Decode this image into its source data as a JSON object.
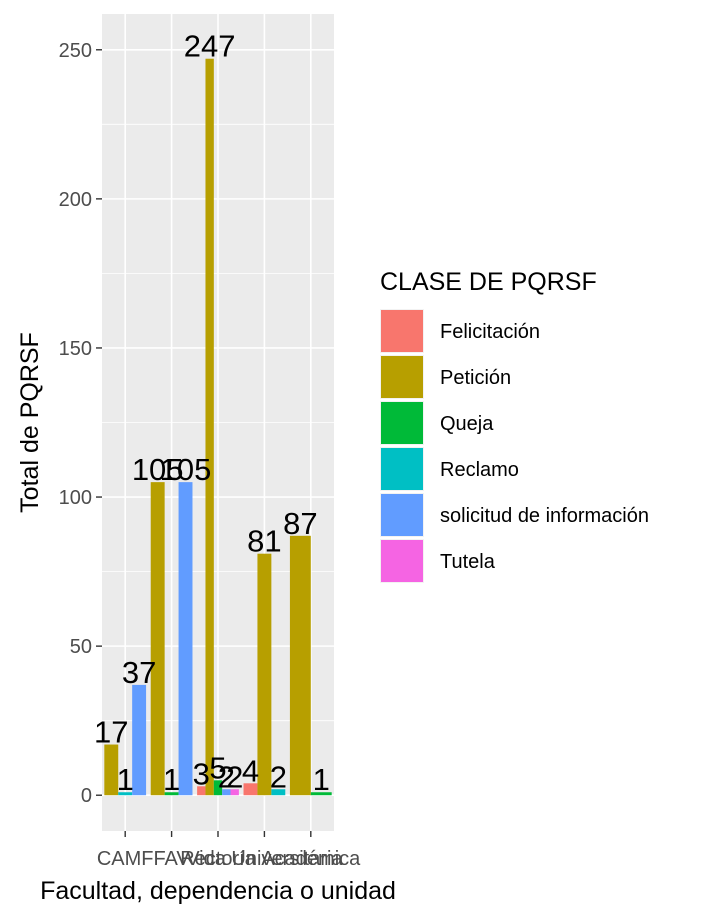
{
  "chart_data": {
    "type": "bar",
    "xlabel": "Facultad, dependencia o unidad",
    "ylabel": "Total de PQRSF",
    "ylim": [
      -12,
      262
    ],
    "yticks": [
      0,
      50,
      100,
      150,
      200,
      250
    ],
    "categories": [
      "CAMF",
      "FAV",
      "Rectoría",
      "Vida Universitaria",
      "Académica"
    ],
    "legend": {
      "title": "CLASE DE PQRSF",
      "position": "right"
    },
    "series": [
      {
        "name": "Felicitación",
        "color": "#F8766D",
        "values": [
          null,
          null,
          3,
          4,
          null
        ]
      },
      {
        "name": "Petición",
        "color": "#B79F00",
        "values": [
          17,
          105,
          247,
          81,
          87
        ]
      },
      {
        "name": "Queja",
        "color": "#00BA38",
        "values": [
          null,
          1,
          5,
          null,
          1
        ]
      },
      {
        "name": "Reclamo",
        "color": "#00BFC4",
        "values": [
          1,
          null,
          null,
          2,
          null
        ]
      },
      {
        "name": "solicitud de información",
        "color": "#619CFF",
        "values": [
          37,
          105,
          2,
          null,
          null
        ]
      },
      {
        "name": "Tutela",
        "color": "#F564E3",
        "values": [
          null,
          null,
          2,
          null,
          null
        ]
      }
    ]
  }
}
